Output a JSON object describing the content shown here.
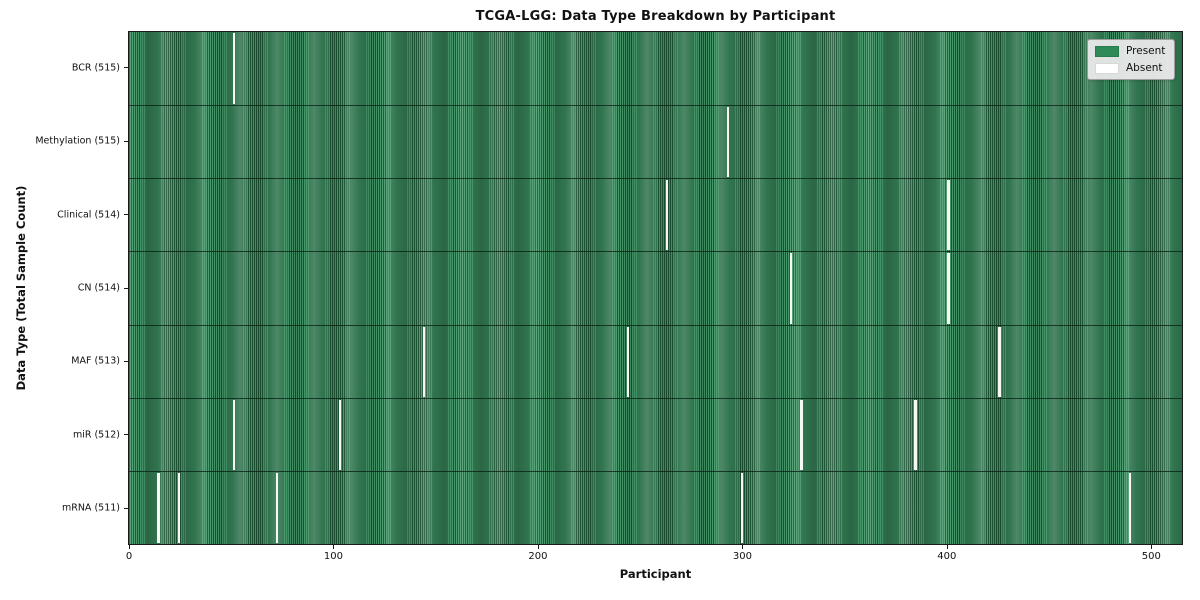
{
  "chart_data": {
    "type": "heatmap",
    "title": "TCGA-LGG: Data Type Breakdown by Participant",
    "xlabel": "Participant",
    "ylabel": "Data Type (Total Sample Count)",
    "x_ticks": [
      0,
      100,
      200,
      300,
      400,
      500
    ],
    "total_participants": 516,
    "xlim": [
      0,
      516
    ],
    "grid": false,
    "legend": {
      "position": "upper right",
      "entries": [
        {
          "label": "Present",
          "color": "#2e8b57"
        },
        {
          "label": "Absent",
          "color": "#ffffff"
        }
      ]
    },
    "rows": [
      {
        "label": "BCR (515)",
        "data_type": "BCR",
        "present_count": 515,
        "absent_participants": [
          51
        ]
      },
      {
        "label": "Methylation (515)",
        "data_type": "Methylation",
        "present_count": 515,
        "absent_participants": [
          293
        ]
      },
      {
        "label": "Clinical (514)",
        "data_type": "Clinical",
        "present_count": 514,
        "absent_participants": [
          263,
          401
        ]
      },
      {
        "label": "CN (514)",
        "data_type": "CN",
        "present_count": 514,
        "absent_participants": [
          324,
          401
        ]
      },
      {
        "label": "MAF (513)",
        "data_type": "MAF",
        "present_count": 513,
        "absent_participants": [
          144,
          244,
          426
        ]
      },
      {
        "label": "miR (512)",
        "data_type": "miR",
        "present_count": 512,
        "absent_participants": [
          51,
          103,
          329,
          385
        ]
      },
      {
        "label": "mRNA (511)",
        "data_type": "mRNA",
        "present_count": 511,
        "absent_participants": [
          14,
          24,
          72,
          300,
          490
        ]
      }
    ],
    "colors": {
      "present": "#2e8b57",
      "absent": "#ffffff",
      "stripe_light": "#46976a",
      "stripe_dark": "#1b5233"
    }
  }
}
